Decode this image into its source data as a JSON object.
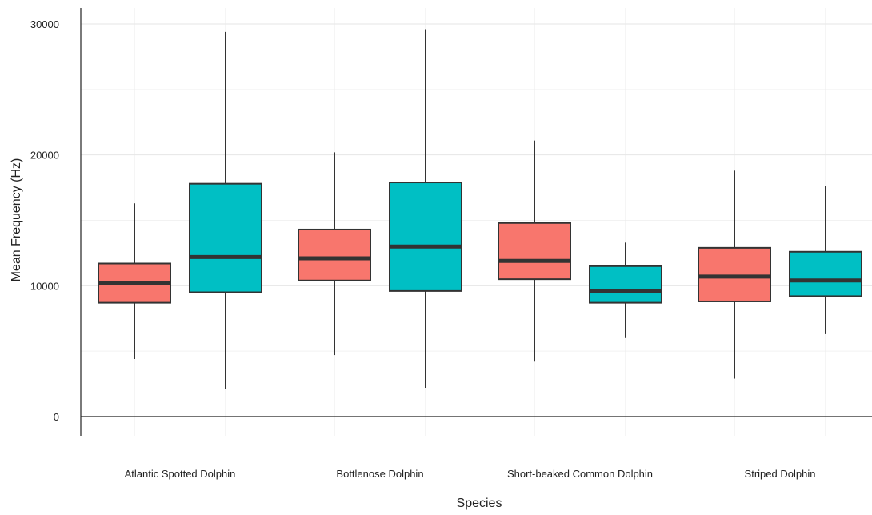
{
  "chart_data": {
    "type": "boxplot",
    "xlabel": "Species",
    "ylabel": "Mean Frequency (Hz)",
    "ylim": [
      -1500,
      31500
    ],
    "yticks": [
      0,
      10000,
      20000,
      30000
    ],
    "grid": true,
    "legend": "none",
    "categories": [
      "Atlantic Spotted Dolphin",
      "Bottlenose Dolphin",
      "Short-beaked Common Dolphin",
      "Striped Dolphin"
    ],
    "groups": [
      {
        "color": "#F8766D",
        "boxes": [
          {
            "min": 4400,
            "q1": 8700,
            "median": 10200,
            "q3": 11700,
            "max": 16300
          },
          {
            "min": 4700,
            "q1": 10400,
            "median": 12100,
            "q3": 14300,
            "max": 20200
          },
          {
            "min": 4200,
            "q1": 10500,
            "median": 11900,
            "q3": 14800,
            "max": 21100
          },
          {
            "min": 2900,
            "q1": 8800,
            "median": 10700,
            "q3": 12900,
            "max": 18800
          }
        ]
      },
      {
        "color": "#00BFC4",
        "boxes": [
          {
            "min": 2100,
            "q1": 9500,
            "median": 12200,
            "q3": 17800,
            "max": 29400
          },
          {
            "min": 2200,
            "q1": 9600,
            "median": 13000,
            "q3": 17900,
            "max": 29600
          },
          {
            "min": 6000,
            "q1": 8700,
            "median": 9600,
            "q3": 11500,
            "max": 13300
          },
          {
            "min": 6300,
            "q1": 9200,
            "median": 10400,
            "q3": 12600,
            "max": 17600
          }
        ]
      }
    ]
  }
}
